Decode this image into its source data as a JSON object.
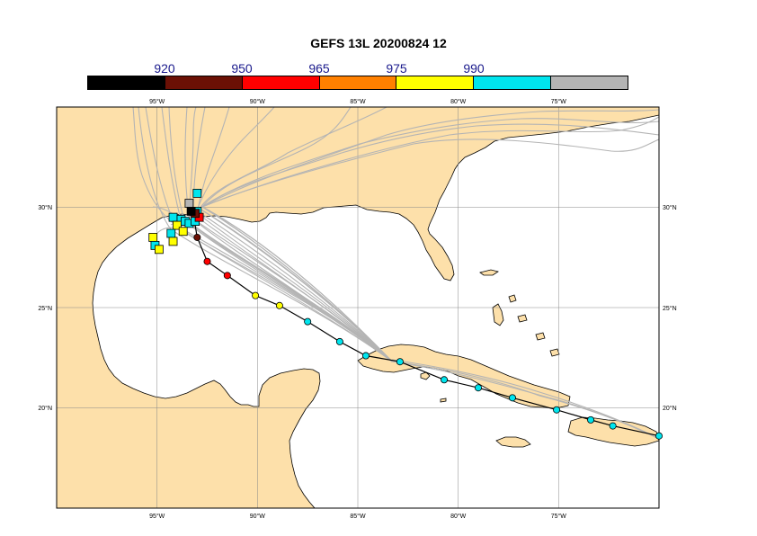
{
  "title": "GEFS 13L 20200824 12",
  "scale": {
    "labels": [
      "920",
      "950",
      "965",
      "975",
      "990"
    ],
    "colors": [
      "#000000",
      "#6b1005",
      "#ff0000",
      "#ff8000",
      "#ffff00",
      "#00e5ee",
      "#b4b4b4"
    ]
  },
  "colors": {
    "land": "#fde0aa",
    "water": "#ffffff",
    "track": "#b4b4b4",
    "grid": "#888888"
  },
  "axes": {
    "lon_labels": [
      "95°W",
      "90°W",
      "85°W",
      "80°W",
      "75°W"
    ],
    "lat_labels": [
      "30°N",
      "25°N",
      "20°N"
    ]
  },
  "chart_data": {
    "type": "scatter",
    "lon_range": [
      -100,
      -70
    ],
    "lat_range": [
      15,
      35
    ],
    "lon_ticks": [
      -95,
      -90,
      -85,
      -80,
      -75
    ],
    "lat_ticks": [
      30,
      25,
      20
    ],
    "mean_track": [
      {
        "lon": -70.0,
        "lat": 18.6,
        "cat": 5
      },
      {
        "lon": -72.3,
        "lat": 19.1,
        "cat": 5
      },
      {
        "lon": -73.4,
        "lat": 19.4,
        "cat": 5
      },
      {
        "lon": -75.1,
        "lat": 19.9,
        "cat": 5
      },
      {
        "lon": -77.3,
        "lat": 20.5,
        "cat": 5
      },
      {
        "lon": -79.0,
        "lat": 21.0,
        "cat": 5
      },
      {
        "lon": -80.7,
        "lat": 21.4,
        "cat": 5
      },
      {
        "lon": -82.9,
        "lat": 22.3,
        "cat": 5
      },
      {
        "lon": -84.6,
        "lat": 22.6,
        "cat": 5
      },
      {
        "lon": -85.9,
        "lat": 23.3,
        "cat": 5
      },
      {
        "lon": -87.5,
        "lat": 24.3,
        "cat": 5
      },
      {
        "lon": -88.9,
        "lat": 25.1,
        "cat": 4
      },
      {
        "lon": -90.1,
        "lat": 25.6,
        "cat": 4
      },
      {
        "lon": -91.5,
        "lat": 26.6,
        "cat": 2
      },
      {
        "lon": -92.5,
        "lat": 27.3,
        "cat": 2
      },
      {
        "lon": -93.0,
        "lat": 28.5,
        "cat": 1
      },
      {
        "lon": -93.2,
        "lat": 29.7,
        "cat": 1
      }
    ],
    "landfall_points": [
      {
        "lon": -94.2,
        "lat": 29.5,
        "cat": 5
      },
      {
        "lon": -93.8,
        "lat": 29.4,
        "cat": 5
      },
      {
        "lon": -94.0,
        "lat": 29.1,
        "cat": 4
      },
      {
        "lon": -93.6,
        "lat": 29.3,
        "cat": 5
      },
      {
        "lon": -93.4,
        "lat": 29.2,
        "cat": 5
      },
      {
        "lon": -93.1,
        "lat": 29.3,
        "cat": 5
      },
      {
        "lon": -93.7,
        "lat": 28.8,
        "cat": 4
      },
      {
        "lon": -94.3,
        "lat": 28.7,
        "cat": 5
      },
      {
        "lon": -94.2,
        "lat": 28.3,
        "cat": 4
      },
      {
        "lon": -95.2,
        "lat": 28.5,
        "cat": 4
      },
      {
        "lon": -95.1,
        "lat": 28.1,
        "cat": 5
      },
      {
        "lon": -94.9,
        "lat": 27.9,
        "cat": 4
      },
      {
        "lon": -93.0,
        "lat": 29.8,
        "cat": 5
      },
      {
        "lon": -92.9,
        "lat": 29.5,
        "cat": 2
      },
      {
        "lon": -93.0,
        "lat": 30.7,
        "cat": 5
      },
      {
        "lon": -93.4,
        "lat": 30.2,
        "cat": 6
      },
      {
        "lon": -93.1,
        "lat": 29.7,
        "cat": 1
      },
      {
        "lon": -93.3,
        "lat": 29.8,
        "cat": 0
      }
    ]
  }
}
